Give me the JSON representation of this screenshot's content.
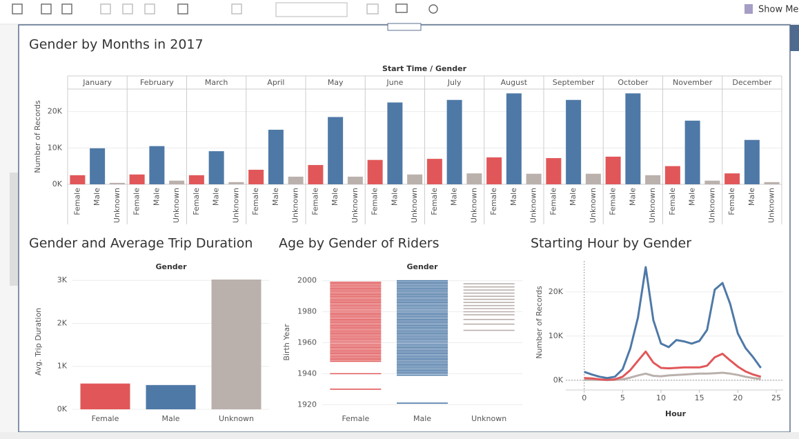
{
  "toolbar": {
    "show_me": "Show Me"
  },
  "chart_data": [
    {
      "type": "grouped_bar",
      "title": "Gender by Months in 2017",
      "header": "Start Time / Gender",
      "y_label": "Number of Records",
      "categories": [
        "January",
        "February",
        "March",
        "April",
        "May",
        "June",
        "July",
        "August",
        "September",
        "October",
        "November",
        "December"
      ],
      "series": [
        {
          "name": "Female",
          "color": "#e15759",
          "values": [
            2500,
            2700,
            2500,
            4000,
            5300,
            6700,
            7000,
            7400,
            7200,
            7600,
            5000,
            3000
          ]
        },
        {
          "name": "Male",
          "color": "#4e79a7",
          "values": [
            9900,
            10500,
            9100,
            15000,
            18500,
            22500,
            23200,
            25000,
            23200,
            25000,
            17500,
            12200
          ]
        },
        {
          "name": "Unknown",
          "color": "#bab0ac",
          "values": [
            400,
            1000,
            600,
            2100,
            2100,
            2700,
            3000,
            2900,
            2900,
            2500,
            1000,
            600
          ]
        }
      ],
      "ylim": [
        0,
        26000
      ],
      "yticks": [
        {
          "value": 0,
          "label": "0K"
        },
        {
          "value": 10000,
          "label": "10K"
        },
        {
          "value": 20000,
          "label": "20K"
        }
      ],
      "grid": true
    },
    {
      "type": "bar",
      "title": "Gender and Average Trip Duration",
      "header": "Gender",
      "y_label": "Avg. Trip Duration",
      "categories": [
        "Female",
        "Male",
        "Unknown"
      ],
      "values": [
        600,
        565,
        3020
      ],
      "colors": [
        "#e15759",
        "#4e79a7",
        "#bab0ac"
      ],
      "ylim": [
        0,
        3100
      ],
      "yticks": [
        {
          "value": 0,
          "label": "0K"
        },
        {
          "value": 1000,
          "label": "1K"
        },
        {
          "value": 2000,
          "label": "2K"
        },
        {
          "value": 3000,
          "label": "3K"
        }
      ],
      "grid": true
    },
    {
      "type": "strip",
      "title": "Age by Gender of Riders",
      "header": "Gender",
      "y_label": "Birth Year",
      "categories": [
        "Female",
        "Male",
        "Unknown"
      ],
      "colors": [
        "#e15759",
        "#4e79a7",
        "#bab0ac"
      ],
      "values": [
        [
          1930,
          1940,
          1948,
          1949,
          1950,
          1951,
          1952,
          1953,
          1954,
          1955,
          1956,
          1957,
          1958,
          1959,
          1960,
          1961,
          1962,
          1963,
          1964,
          1965,
          1966,
          1967,
          1968,
          1969,
          1970,
          1971,
          1972,
          1973,
          1974,
          1975,
          1976,
          1977,
          1978,
          1979,
          1980,
          1981,
          1982,
          1983,
          1984,
          1985,
          1986,
          1987,
          1988,
          1989,
          1990,
          1991,
          1992,
          1993,
          1994,
          1995,
          1996,
          1997,
          1998,
          1999
        ],
        [
          1921,
          1939,
          1940,
          1941,
          1942,
          1943,
          1944,
          1945,
          1946,
          1947,
          1948,
          1949,
          1950,
          1951,
          1952,
          1953,
          1954,
          1955,
          1956,
          1957,
          1958,
          1959,
          1960,
          1961,
          1962,
          1963,
          1964,
          1965,
          1966,
          1967,
          1968,
          1969,
          1970,
          1971,
          1972,
          1973,
          1974,
          1975,
          1976,
          1977,
          1978,
          1979,
          1980,
          1981,
          1982,
          1983,
          1984,
          1985,
          1986,
          1987,
          1988,
          1989,
          1990,
          1991,
          1992,
          1993,
          1994,
          1995,
          1996,
          1997,
          1998,
          1999,
          2000
        ],
        [
          1968,
          1972,
          1975,
          1978,
          1980,
          1982,
          1984,
          1986,
          1988,
          1990,
          1992,
          1994,
          1996,
          1998
        ]
      ],
      "ylim": [
        1917,
        2003
      ],
      "yticks": [
        1920,
        1940,
        1960,
        1980,
        2000
      ],
      "grid": true
    },
    {
      "type": "line",
      "title": "Starting Hour by Gender",
      "x_label": "Hour",
      "y_label": "Number of Records",
      "x": [
        0,
        1,
        2,
        3,
        4,
        5,
        6,
        7,
        8,
        9,
        10,
        11,
        12,
        13,
        14,
        15,
        16,
        17,
        18,
        19,
        20,
        21,
        22,
        23
      ],
      "series": [
        {
          "name": "Male",
          "color": "#4e79a7",
          "values": [
            1900,
            1300,
            800,
            500,
            800,
            2500,
            7200,
            14200,
            25600,
            13600,
            8300,
            7500,
            9100,
            8800,
            8300,
            8900,
            11400,
            20500,
            22000,
            17300,
            10600,
            7300,
            5200,
            2800
          ]
        },
        {
          "name": "Female",
          "color": "#e15759",
          "values": [
            500,
            400,
            200,
            100,
            200,
            800,
            2300,
            4400,
            6500,
            4000,
            2800,
            2700,
            2800,
            2900,
            2900,
            2900,
            3300,
            5200,
            6000,
            4500,
            3100,
            2000,
            1300,
            800
          ]
        },
        {
          "name": "Unknown",
          "color": "#bab0ac",
          "values": [
            100,
            100,
            100,
            50,
            100,
            200,
            600,
            1100,
            1500,
            1000,
            900,
            1100,
            1200,
            1300,
            1400,
            1500,
            1500,
            1600,
            1700,
            1500,
            1200,
            800,
            500,
            300
          ]
        }
      ],
      "xlim": [
        -2.4,
        25.9
      ],
      "xticks": [
        0,
        5,
        10,
        15,
        20,
        25
      ],
      "ylim": [
        -2200,
        27000
      ],
      "yticks": [
        {
          "value": 0,
          "label": "0K"
        },
        {
          "value": 10000,
          "label": "10K"
        },
        {
          "value": 20000,
          "label": "20K"
        }
      ],
      "grid": true
    }
  ]
}
